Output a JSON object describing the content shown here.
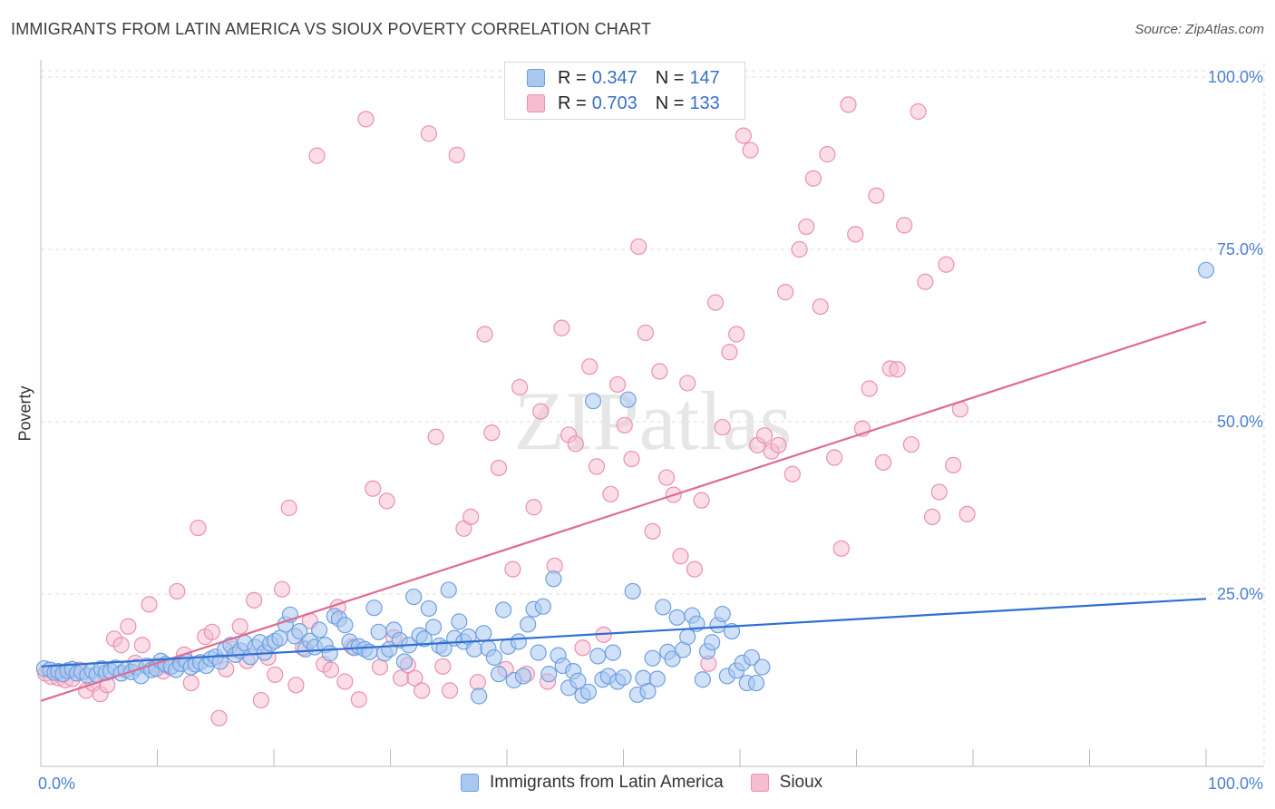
{
  "header": {
    "title": "IMMIGRANTS FROM LATIN AMERICA VS SIOUX POVERTY CORRELATION CHART",
    "source": "Source: ZipAtlas.com"
  },
  "watermark": "ZIPatlas",
  "legend": {
    "items": [
      {
        "r_label": "R =",
        "r_value": "0.347",
        "n_label": "N =",
        "n_value": "147"
      },
      {
        "r_label": "R =",
        "r_value": "0.703",
        "n_label": "N =",
        "n_value": "133"
      }
    ],
    "bottom": [
      "Immigrants from Latin America",
      "Sioux"
    ]
  },
  "colors": {
    "blue_fill": "#a9c8f0",
    "blue_stroke": "#6f9fe0",
    "blue_line": "#2f6fd0",
    "pink_fill": "#f6bccf",
    "pink_stroke": "#ec8fae",
    "pink_line": "#e06a93",
    "tick_color": "#4a7fd0",
    "grid": "#dddddd"
  },
  "chart_data": {
    "type": "scatter",
    "title": "IMMIGRANTS FROM LATIN AMERICA VS SIOUX POVERTY CORRELATION CHART",
    "xlabel": "",
    "ylabel": "Poverty",
    "xlim": [
      0,
      100
    ],
    "ylim": [
      0,
      105
    ],
    "x_tick_labels": [
      "0.0%",
      "100.0%"
    ],
    "y_ticks": [
      25,
      50,
      75,
      100
    ],
    "y_tick_labels": [
      "25.0%",
      "50.0%",
      "75.0%",
      "100.0%"
    ],
    "grid": true,
    "legend_position": "top-center",
    "series": [
      {
        "name": "Immigrants from Latin America",
        "r": 0.347,
        "n": 147,
        "trend": {
          "x": [
            0,
            100
          ],
          "y": [
            14.5,
            24.3
          ]
        },
        "points": [
          [
            0.3,
            14.2
          ],
          [
            0.8,
            14.0
          ],
          [
            1.2,
            13.6
          ],
          [
            1.5,
            13.8
          ],
          [
            1.9,
            13.4
          ],
          [
            2.3,
            13.9
          ],
          [
            2.7,
            14.1
          ],
          [
            3.1,
            13.5
          ],
          [
            3.5,
            13.7
          ],
          [
            4.0,
            13.2
          ],
          [
            4.4,
            13.9
          ],
          [
            4.8,
            13.3
          ],
          [
            5.2,
            14.2
          ],
          [
            5.6,
            13.6
          ],
          [
            6.0,
            13.8
          ],
          [
            6.4,
            14.3
          ],
          [
            6.9,
            13.5
          ],
          [
            7.3,
            14.0
          ],
          [
            7.8,
            13.7
          ],
          [
            8.2,
            14.4
          ],
          [
            8.6,
            13.1
          ],
          [
            9.1,
            14.6
          ],
          [
            9.5,
            14.0
          ],
          [
            9.9,
            14.2
          ],
          [
            10.3,
            15.3
          ],
          [
            10.7,
            14.8
          ],
          [
            11.2,
            14.5
          ],
          [
            11.6,
            14.0
          ],
          [
            12.0,
            14.9
          ],
          [
            12.5,
            15.2
          ],
          [
            12.9,
            14.4
          ],
          [
            13.3,
            14.8
          ],
          [
            13.7,
            15.1
          ],
          [
            14.2,
            14.6
          ],
          [
            14.6,
            15.6
          ],
          [
            15.0,
            15.9
          ],
          [
            15.4,
            15.2
          ],
          [
            15.8,
            16.9
          ],
          [
            16.3,
            17.6
          ],
          [
            16.7,
            16.2
          ],
          [
            17.1,
            16.8
          ],
          [
            17.5,
            17.9
          ],
          [
            18.0,
            15.9
          ],
          [
            18.4,
            17.3
          ],
          [
            18.8,
            18.0
          ],
          [
            19.2,
            16.5
          ],
          [
            19.7,
            17.8
          ],
          [
            20.1,
            18.2
          ],
          [
            20.5,
            18.6
          ],
          [
            21.0,
            20.6
          ],
          [
            21.4,
            22.0
          ],
          [
            21.8,
            18.9
          ],
          [
            22.2,
            19.6
          ],
          [
            22.7,
            17.0
          ],
          [
            23.1,
            18.2
          ],
          [
            23.5,
            17.3
          ],
          [
            23.9,
            19.8
          ],
          [
            24.4,
            17.6
          ],
          [
            24.8,
            16.4
          ],
          [
            25.2,
            21.8
          ],
          [
            25.6,
            21.4
          ],
          [
            26.1,
            20.5
          ],
          [
            26.5,
            18.1
          ],
          [
            26.9,
            17.2
          ],
          [
            27.3,
            17.4
          ],
          [
            27.8,
            17.0
          ],
          [
            28.2,
            16.6
          ],
          [
            28.6,
            23.0
          ],
          [
            29.0,
            19.5
          ],
          [
            29.5,
            16.4
          ],
          [
            29.9,
            17.0
          ],
          [
            30.3,
            19.8
          ],
          [
            30.8,
            18.3
          ],
          [
            31.2,
            15.2
          ],
          [
            31.6,
            17.6
          ],
          [
            32.0,
            24.6
          ],
          [
            32.5,
            19.0
          ],
          [
            32.9,
            18.5
          ],
          [
            33.3,
            22.9
          ],
          [
            33.7,
            20.2
          ],
          [
            34.2,
            17.5
          ],
          [
            34.6,
            17.1
          ],
          [
            35.0,
            25.6
          ],
          [
            35.5,
            18.6
          ],
          [
            35.9,
            21.0
          ],
          [
            36.3,
            18.1
          ],
          [
            36.7,
            18.8
          ],
          [
            37.2,
            17.0
          ],
          [
            37.6,
            10.2
          ],
          [
            38.0,
            19.3
          ],
          [
            38.4,
            17.1
          ],
          [
            38.9,
            15.8
          ],
          [
            39.3,
            13.4
          ],
          [
            39.7,
            22.7
          ],
          [
            40.1,
            17.4
          ],
          [
            40.6,
            12.5
          ],
          [
            41.0,
            18.1
          ],
          [
            41.4,
            13.1
          ],
          [
            41.8,
            20.6
          ],
          [
            42.3,
            22.8
          ],
          [
            42.7,
            16.5
          ],
          [
            43.1,
            23.2
          ],
          [
            43.6,
            13.4
          ],
          [
            44.0,
            27.2
          ],
          [
            44.4,
            16.1
          ],
          [
            44.8,
            14.6
          ],
          [
            45.3,
            11.4
          ],
          [
            45.7,
            13.8
          ],
          [
            46.1,
            12.4
          ],
          [
            46.5,
            10.3
          ],
          [
            47.0,
            10.8
          ],
          [
            47.4,
            53.0
          ],
          [
            47.8,
            16.0
          ],
          [
            48.2,
            12.6
          ],
          [
            48.7,
            13.1
          ],
          [
            49.1,
            16.5
          ],
          [
            49.5,
            12.3
          ],
          [
            50.0,
            12.9
          ],
          [
            50.4,
            53.2
          ],
          [
            50.8,
            25.4
          ],
          [
            51.2,
            10.4
          ],
          [
            51.7,
            12.8
          ],
          [
            52.1,
            10.9
          ],
          [
            52.5,
            15.7
          ],
          [
            52.9,
            12.7
          ],
          [
            53.4,
            23.1
          ],
          [
            53.8,
            16.6
          ],
          [
            54.2,
            15.6
          ],
          [
            54.6,
            21.6
          ],
          [
            55.1,
            16.9
          ],
          [
            55.5,
            18.8
          ],
          [
            55.9,
            21.9
          ],
          [
            56.3,
            20.7
          ],
          [
            56.8,
            12.6
          ],
          [
            57.2,
            16.7
          ],
          [
            57.6,
            18.0
          ],
          [
            58.1,
            20.5
          ],
          [
            58.5,
            22.1
          ],
          [
            58.9,
            13.1
          ],
          [
            59.3,
            19.6
          ],
          [
            59.7,
            13.9
          ],
          [
            60.2,
            15.0
          ],
          [
            60.6,
            12.1
          ],
          [
            61.0,
            15.8
          ],
          [
            61.4,
            12.1
          ],
          [
            61.9,
            14.4
          ],
          [
            100.0,
            72.0
          ]
        ]
      },
      {
        "name": "Sioux",
        "r": 0.703,
        "n": 133,
        "trend": {
          "x": [
            0,
            100
          ],
          "y": [
            9.5,
            64.5
          ]
        },
        "points": [
          [
            0.4,
            13.5
          ],
          [
            0.9,
            13.0
          ],
          [
            1.5,
            12.8
          ],
          [
            2.1,
            12.5
          ],
          [
            2.7,
            12.7
          ],
          [
            3.3,
            14.0
          ],
          [
            3.9,
            11.0
          ],
          [
            4.5,
            12.0
          ],
          [
            5.1,
            10.5
          ],
          [
            5.7,
            11.8
          ],
          [
            6.3,
            18.5
          ],
          [
            6.9,
            17.6
          ],
          [
            7.5,
            20.3
          ],
          [
            8.1,
            15.0
          ],
          [
            8.7,
            17.6
          ],
          [
            9.3,
            23.5
          ],
          [
            9.9,
            14.6
          ],
          [
            10.5,
            13.8
          ],
          [
            11.1,
            14.4
          ],
          [
            11.7,
            25.4
          ],
          [
            12.3,
            16.2
          ],
          [
            12.9,
            12.1
          ],
          [
            13.5,
            34.6
          ],
          [
            14.1,
            18.8
          ],
          [
            14.7,
            19.5
          ],
          [
            15.3,
            7.0
          ],
          [
            15.9,
            14.1
          ],
          [
            16.5,
            17.0
          ],
          [
            17.1,
            20.3
          ],
          [
            17.7,
            15.3
          ],
          [
            18.3,
            24.1
          ],
          [
            18.9,
            9.6
          ],
          [
            19.5,
            15.8
          ],
          [
            20.1,
            13.3
          ],
          [
            20.7,
            25.7
          ],
          [
            21.3,
            37.5
          ],
          [
            21.9,
            11.8
          ],
          [
            22.5,
            17.2
          ],
          [
            23.1,
            21.1
          ],
          [
            23.7,
            88.6
          ],
          [
            24.3,
            14.8
          ],
          [
            24.9,
            14.0
          ],
          [
            25.5,
            23.1
          ],
          [
            26.1,
            12.3
          ],
          [
            26.7,
            17.4
          ],
          [
            27.3,
            9.7
          ],
          [
            27.9,
            93.9
          ],
          [
            28.5,
            40.3
          ],
          [
            29.1,
            14.4
          ],
          [
            29.7,
            38.5
          ],
          [
            30.3,
            18.7
          ],
          [
            30.9,
            12.8
          ],
          [
            31.5,
            14.7
          ],
          [
            32.1,
            12.8
          ],
          [
            32.7,
            11.0
          ],
          [
            33.3,
            91.8
          ],
          [
            33.9,
            47.8
          ],
          [
            34.5,
            14.5
          ],
          [
            35.1,
            11.0
          ],
          [
            35.7,
            88.7
          ],
          [
            36.3,
            34.5
          ],
          [
            36.9,
            36.2
          ],
          [
            37.5,
            12.2
          ],
          [
            38.1,
            62.7
          ],
          [
            38.7,
            48.4
          ],
          [
            39.3,
            43.3
          ],
          [
            39.9,
            14.1
          ],
          [
            40.5,
            28.6
          ],
          [
            41.1,
            55.0
          ],
          [
            41.7,
            13.4
          ],
          [
            42.3,
            37.6
          ],
          [
            42.9,
            51.5
          ],
          [
            43.5,
            12.3
          ],
          [
            44.1,
            29.1
          ],
          [
            44.7,
            63.6
          ],
          [
            45.3,
            48.1
          ],
          [
            45.9,
            46.8
          ],
          [
            46.5,
            17.2
          ],
          [
            47.1,
            58.0
          ],
          [
            47.7,
            43.5
          ],
          [
            48.3,
            19.1
          ],
          [
            48.9,
            39.5
          ],
          [
            49.5,
            55.4
          ],
          [
            50.1,
            49.5
          ],
          [
            50.7,
            44.6
          ],
          [
            51.3,
            75.4
          ],
          [
            51.9,
            62.9
          ],
          [
            52.5,
            34.1
          ],
          [
            53.1,
            57.3
          ],
          [
            53.7,
            41.9
          ],
          [
            54.3,
            39.4
          ],
          [
            54.9,
            30.5
          ],
          [
            55.5,
            55.6
          ],
          [
            56.1,
            28.6
          ],
          [
            56.7,
            38.6
          ],
          [
            57.3,
            14.9
          ],
          [
            57.9,
            67.3
          ],
          [
            58.5,
            49.2
          ],
          [
            59.1,
            60.1
          ],
          [
            59.7,
            62.7
          ],
          [
            60.3,
            91.5
          ],
          [
            60.9,
            89.4
          ],
          [
            61.5,
            46.6
          ],
          [
            62.1,
            48.0
          ],
          [
            62.7,
            45.7
          ],
          [
            63.3,
            46.6
          ],
          [
            63.9,
            68.8
          ],
          [
            64.5,
            42.4
          ],
          [
            65.1,
            75.0
          ],
          [
            65.7,
            78.3
          ],
          [
            66.3,
            85.3
          ],
          [
            66.9,
            66.7
          ],
          [
            67.5,
            88.8
          ],
          [
            68.1,
            44.8
          ],
          [
            68.7,
            31.6
          ],
          [
            69.3,
            96.0
          ],
          [
            69.9,
            77.2
          ],
          [
            70.5,
            49.0
          ],
          [
            71.1,
            54.8
          ],
          [
            71.7,
            82.8
          ],
          [
            72.3,
            44.1
          ],
          [
            72.9,
            57.7
          ],
          [
            73.5,
            57.6
          ],
          [
            74.1,
            78.5
          ],
          [
            74.7,
            46.7
          ],
          [
            75.3,
            95.0
          ],
          [
            75.9,
            70.3
          ],
          [
            76.5,
            36.2
          ],
          [
            77.1,
            39.8
          ],
          [
            77.7,
            72.8
          ],
          [
            78.3,
            43.7
          ],
          [
            78.9,
            51.8
          ],
          [
            79.5,
            36.6
          ]
        ]
      }
    ]
  }
}
